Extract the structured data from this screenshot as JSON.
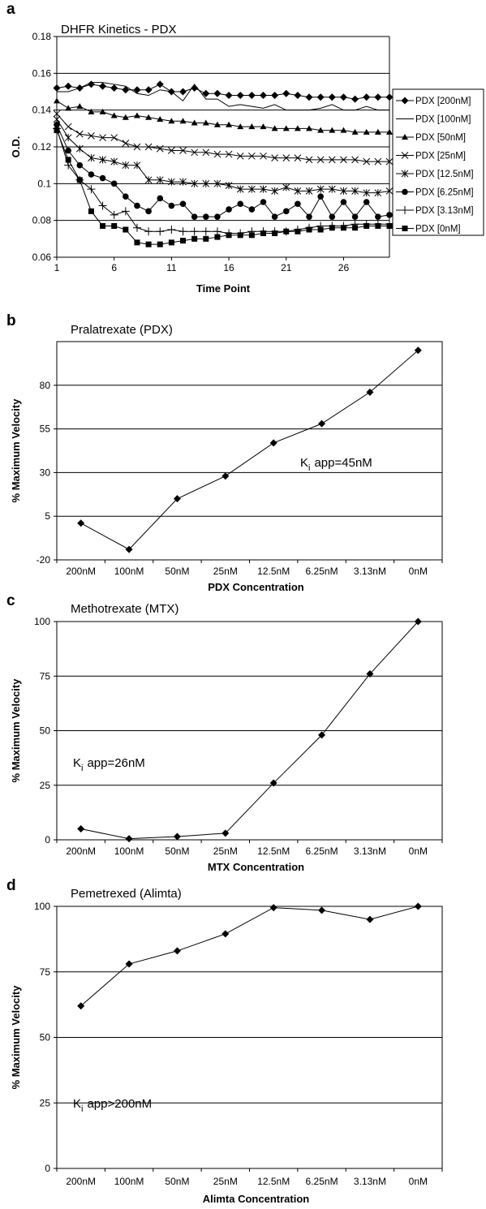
{
  "chart_data": [
    {
      "panel": "a",
      "type": "line",
      "title": "DHFR Kinetics - PDX",
      "xlabel": "Time Point",
      "ylabel": "O.D.",
      "ylim": [
        0.06,
        0.18
      ],
      "xlim": [
        1,
        30
      ],
      "x_ticks": [
        1,
        6,
        11,
        16,
        21,
        26
      ],
      "y_ticks": [
        "0.06",
        "0.08",
        "0.1",
        "0.12",
        "0.14",
        "0.16",
        "0.18"
      ],
      "grid": true,
      "legend": "right",
      "x": [
        1,
        2,
        3,
        4,
        5,
        6,
        7,
        8,
        9,
        10,
        11,
        12,
        13,
        14,
        15,
        16,
        17,
        18,
        19,
        20,
        21,
        22,
        23,
        24,
        25,
        26,
        27,
        28,
        29,
        30
      ],
      "series": [
        {
          "name": "PDX [200nM]",
          "marker": "diamond",
          "values": [
            0.152,
            0.153,
            0.152,
            0.154,
            0.153,
            0.152,
            0.151,
            0.151,
            0.151,
            0.154,
            0.15,
            0.15,
            0.152,
            0.149,
            0.149,
            0.148,
            0.148,
            0.148,
            0.148,
            0.148,
            0.149,
            0.148,
            0.147,
            0.147,
            0.147,
            0.147,
            0.146,
            0.147,
            0.147,
            0.147
          ]
        },
        {
          "name": "PDX [100nM]",
          "marker": "none",
          "values": [
            0.15,
            0.15,
            0.152,
            0.155,
            0.155,
            0.154,
            0.153,
            0.149,
            0.148,
            0.151,
            0.15,
            0.145,
            0.154,
            0.146,
            0.146,
            0.142,
            0.143,
            0.142,
            0.141,
            0.143,
            0.14,
            0.14,
            0.14,
            0.141,
            0.143,
            0.14,
            0.14,
            0.142,
            0.14,
            0.14
          ]
        },
        {
          "name": "PDX [50nM]",
          "marker": "triangle",
          "values": [
            0.145,
            0.141,
            0.142,
            0.139,
            0.139,
            0.137,
            0.136,
            0.137,
            0.136,
            0.135,
            0.134,
            0.134,
            0.133,
            0.133,
            0.132,
            0.132,
            0.131,
            0.131,
            0.131,
            0.13,
            0.13,
            0.13,
            0.13,
            0.129,
            0.129,
            0.129,
            0.128,
            0.128,
            0.128,
            0.128
          ]
        },
        {
          "name": "PDX [25nM]",
          "marker": "x",
          "values": [
            0.138,
            0.131,
            0.127,
            0.126,
            0.125,
            0.125,
            0.122,
            0.12,
            0.12,
            0.119,
            0.118,
            0.118,
            0.117,
            0.117,
            0.116,
            0.116,
            0.115,
            0.115,
            0.115,
            0.114,
            0.114,
            0.114,
            0.113,
            0.113,
            0.113,
            0.113,
            0.113,
            0.112,
            0.112,
            0.112
          ]
        },
        {
          "name": "PDX [12.5nM]",
          "marker": "star",
          "values": [
            0.135,
            0.125,
            0.119,
            0.114,
            0.113,
            0.112,
            0.11,
            0.11,
            0.102,
            0.102,
            0.101,
            0.101,
            0.1,
            0.1,
            0.1,
            0.099,
            0.097,
            0.097,
            0.097,
            0.096,
            0.098,
            0.096,
            0.096,
            0.097,
            0.097,
            0.096,
            0.096,
            0.095,
            0.095,
            0.096
          ]
        },
        {
          "name": "PDX [6.25nM]",
          "marker": "circle",
          "values": [
            0.132,
            0.118,
            0.11,
            0.105,
            0.103,
            0.1,
            0.093,
            0.088,
            0.085,
            0.092,
            0.088,
            0.089,
            0.082,
            0.082,
            0.082,
            0.086,
            0.089,
            0.086,
            0.09,
            0.082,
            0.085,
            0.089,
            0.082,
            0.093,
            0.082,
            0.09,
            0.082,
            0.09,
            0.082,
            0.083
          ]
        },
        {
          "name": "PDX [3.13nM]",
          "marker": "plus",
          "values": [
            0.13,
            0.11,
            0.102,
            0.097,
            0.088,
            0.083,
            0.085,
            0.076,
            0.074,
            0.074,
            0.075,
            0.074,
            0.074,
            0.074,
            0.074,
            0.073,
            0.073,
            0.074,
            0.074,
            0.074,
            0.074,
            0.075,
            0.076,
            0.077,
            0.077,
            0.077,
            0.078,
            0.078,
            0.078,
            0.078
          ]
        },
        {
          "name": "PDX [0nM]",
          "marker": "square",
          "values": [
            0.129,
            0.113,
            0.102,
            0.085,
            0.077,
            0.077,
            0.075,
            0.068,
            0.067,
            0.067,
            0.068,
            0.069,
            0.07,
            0.07,
            0.071,
            0.072,
            0.072,
            0.072,
            0.073,
            0.073,
            0.074,
            0.074,
            0.075,
            0.075,
            0.076,
            0.076,
            0.076,
            0.077,
            0.077,
            0.077
          ]
        }
      ]
    },
    {
      "panel": "b",
      "type": "line",
      "title": "Pralatrexate (PDX)",
      "xlabel": "PDX Concentration",
      "ylabel": "% Maximum Velocity",
      "ylim": [
        -20,
        105
      ],
      "y_ticks": [
        -20,
        5,
        30,
        55,
        80
      ],
      "grid": true,
      "categories": [
        "200nM",
        "100nM",
        "50nM",
        "25nM",
        "12.5nM",
        "6.25nM",
        "3.13nM",
        "0nM"
      ],
      "values": [
        1,
        -14,
        15,
        28,
        47,
        58,
        76,
        100
      ],
      "annotation": "app=45nM",
      "annotation_prefix": "K",
      "annotation_sub": "i"
    },
    {
      "panel": "c",
      "type": "line",
      "title": "Methotrexate (MTX)",
      "xlabel": "MTX Concentration",
      "ylabel": "% Maximum Velocity",
      "ylim": [
        0,
        100
      ],
      "y_ticks": [
        0,
        25,
        50,
        75,
        100
      ],
      "grid": true,
      "categories": [
        "200nM",
        "100nM",
        "50nM",
        "25nM",
        "12.5nM",
        "6.25nM",
        "3.13nM",
        "0nM"
      ],
      "values": [
        5,
        0.5,
        1.5,
        3,
        26,
        48,
        76,
        100
      ],
      "annotation": "app=26nM",
      "annotation_prefix": "K",
      "annotation_sub": "i"
    },
    {
      "panel": "d",
      "type": "line",
      "title": "Pemetrexed (Alimta)",
      "xlabel": "Alimta Concentration",
      "ylabel": "% Maximum Velocity",
      "ylim": [
        0,
        100
      ],
      "y_ticks": [
        0,
        25,
        50,
        75,
        100
      ],
      "grid": true,
      "categories": [
        "200nM",
        "100nM",
        "50nM",
        "25nM",
        "12.5nM",
        "6.25nM",
        "3.13nM",
        "0nM"
      ],
      "values": [
        62,
        78,
        83,
        89.5,
        99.5,
        98.5,
        95,
        100
      ],
      "annotation": "app>200nM",
      "annotation_prefix": "K",
      "annotation_sub": "i"
    }
  ]
}
